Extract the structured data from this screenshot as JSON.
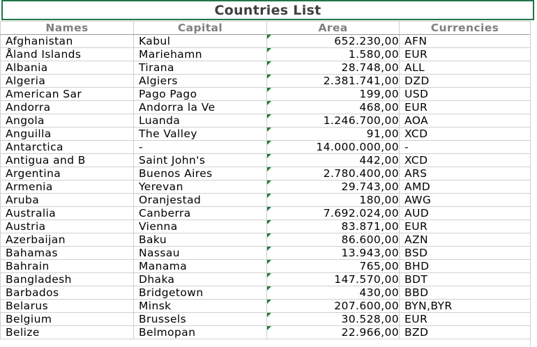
{
  "title": "Countries List",
  "headers": {
    "name": "Names",
    "capital": "Capital",
    "area": "Area",
    "currency": "Currencies"
  },
  "rows": [
    {
      "name": "Afghanistan",
      "capital": "Kabul",
      "area": "652.230,00",
      "currency": "AFN"
    },
    {
      "name": "Åland Islands",
      "capital": "Mariehamn",
      "area": "1.580,00",
      "currency": "EUR"
    },
    {
      "name": "Albania",
      "capital": "Tirana",
      "area": "28.748,00",
      "currency": "ALL"
    },
    {
      "name": "Algeria",
      "capital": "Algiers",
      "area": "2.381.741,00",
      "currency": "DZD"
    },
    {
      "name": "American Sar",
      "capital": "Pago Pago",
      "area": "199,00",
      "currency": "USD"
    },
    {
      "name": "Andorra",
      "capital": "Andorra la Ve",
      "area": "468,00",
      "currency": "EUR"
    },
    {
      "name": "Angola",
      "capital": "Luanda",
      "area": "1.246.700,00",
      "currency": "AOA"
    },
    {
      "name": "Anguilla",
      "capital": "The Valley",
      "area": "91,00",
      "currency": "XCD"
    },
    {
      "name": "Antarctica",
      "capital": "-",
      "area": "14.000.000,00",
      "currency": "-"
    },
    {
      "name": "Antigua and B",
      "capital": "Saint John's",
      "area": "442,00",
      "currency": "XCD"
    },
    {
      "name": "Argentina",
      "capital": "Buenos Aires",
      "area": "2.780.400,00",
      "currency": "ARS"
    },
    {
      "name": "Armenia",
      "capital": "Yerevan",
      "area": "29.743,00",
      "currency": "AMD"
    },
    {
      "name": "Aruba",
      "capital": "Oranjestad",
      "area": "180,00",
      "currency": "AWG"
    },
    {
      "name": "Australia",
      "capital": "Canberra",
      "area": "7.692.024,00",
      "currency": "AUD"
    },
    {
      "name": "Austria",
      "capital": "Vienna",
      "area": "83.871,00",
      "currency": "EUR"
    },
    {
      "name": "Azerbaijan",
      "capital": "Baku",
      "area": "86.600,00",
      "currency": "AZN"
    },
    {
      "name": "Bahamas",
      "capital": "Nassau",
      "area": "13.943,00",
      "currency": "BSD"
    },
    {
      "name": "Bahrain",
      "capital": "Manama",
      "area": "765,00",
      "currency": "BHD"
    },
    {
      "name": "Bangladesh",
      "capital": "Dhaka",
      "area": "147.570,00",
      "currency": "BDT"
    },
    {
      "name": "Barbados",
      "capital": "Bridgetown",
      "area": "430,00",
      "currency": "BBD"
    },
    {
      "name": "Belarus",
      "capital": "Minsk",
      "area": "207.600,00",
      "currency": "BYN,BYR"
    },
    {
      "name": "Belgium",
      "capital": "Brussels",
      "area": "30.528,00",
      "currency": "EUR"
    },
    {
      "name": "Belize",
      "capital": "Belmopan",
      "area": "22.966,00",
      "currency": "BZD"
    }
  ],
  "colors": {
    "selection_border": "#217346",
    "error_flag": "#1e7c3a",
    "header_text": "#7f7f7f",
    "gridline": "#cfcfcf"
  }
}
